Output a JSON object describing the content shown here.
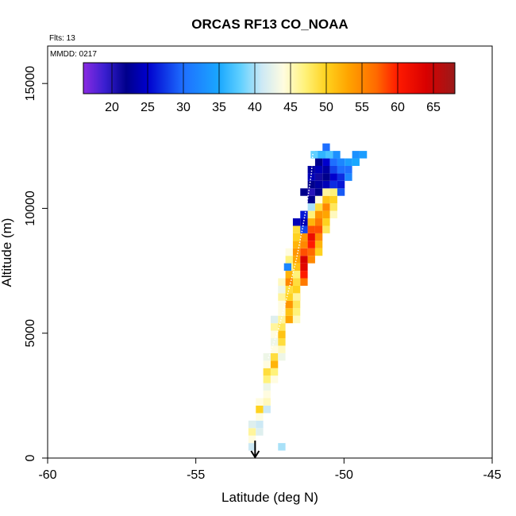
{
  "chart_data": {
    "type": "heatmap",
    "title": "ORCAS RF13 CO_NOAA",
    "flights_label": "Flts: 13",
    "date_label": "MMDD: 0217",
    "xlabel": "Latitude (deg N)",
    "ylabel": "Altitude (m)",
    "xlim": [
      -60,
      -45
    ],
    "ylim": [
      0,
      16500
    ],
    "xticks": [
      -60,
      -55,
      -50,
      -45
    ],
    "yticks": [
      0,
      5000,
      10000,
      15000
    ],
    "colorbar": {
      "range": [
        16,
        68
      ],
      "ticks": [
        20,
        25,
        30,
        35,
        40,
        45,
        50,
        55,
        60,
        65
      ],
      "stops": [
        {
          "v": 16,
          "c": "#8a2be2"
        },
        {
          "v": 19,
          "c": "#3a1fd0"
        },
        {
          "v": 22,
          "c": "#00008b"
        },
        {
          "v": 25,
          "c": "#0000cd"
        },
        {
          "v": 30,
          "c": "#1e6fff"
        },
        {
          "v": 35,
          "c": "#1aa8ff"
        },
        {
          "v": 38,
          "c": "#60d0ff"
        },
        {
          "v": 41,
          "c": "#cde9f5"
        },
        {
          "v": 44,
          "c": "#fffce0"
        },
        {
          "v": 47,
          "c": "#fff27a"
        },
        {
          "v": 50,
          "c": "#ffd21e"
        },
        {
          "v": 53,
          "c": "#ffa500"
        },
        {
          "v": 57,
          "c": "#ff6a00"
        },
        {
          "v": 60,
          "c": "#ff1a00"
        },
        {
          "v": 64,
          "c": "#d80000"
        },
        {
          "v": 68,
          "c": "#9a1a1a"
        }
      ]
    },
    "arrow_latitude": -53.0,
    "bin": {
      "dlat": 0.25,
      "dalt": 300
    },
    "columns": [
      {
        "lat": -53.1,
        "alt0": 300,
        "values": [
          41,
          44,
          46,
          42
        ]
      },
      {
        "lat": -52.85,
        "alt0": 900,
        "values": [
          42,
          41,
          44,
          50,
          44
        ]
      },
      {
        "lat": -52.6,
        "alt0": 1800,
        "values": [
          41,
          45,
          44,
          43,
          47,
          49,
          44,
          43
        ]
      },
      {
        "lat": -52.35,
        "alt0": 3000,
        "values": [
          44,
          47,
          52,
          49,
          44,
          43,
          44,
          46,
          42
        ]
      },
      {
        "lat": -52.1,
        "alt0": 3900,
        "values": [
          43,
          45,
          49,
          51,
          48,
          46,
          44,
          44,
          46,
          43,
          45
        ]
      },
      {
        "lat": -51.85,
        "alt0": 5400,
        "values": [
          53,
          51,
          54,
          50,
          49,
          55,
          52,
          46,
          47,
          44
        ]
      },
      {
        "lat": -51.6,
        "alt0": 5400,
        "values": [
          45,
          47,
          48,
          52,
          50,
          49,
          47,
          51,
          53,
          54,
          52,
          50,
          49
        ]
      },
      {
        "lat": -51.35,
        "alt0": 6900,
        "values": [
          56,
          60,
          63,
          64,
          58,
          55,
          54,
          28,
          24
        ]
      },
      {
        "lat": -51.1,
        "alt0": 7800,
        "values": [
          55,
          57,
          60,
          62,
          58,
          52,
          47,
          40,
          22,
          20,
          22,
          24,
          23
        ]
      },
      {
        "lat": -50.85,
        "alt0": 8100,
        "values": [
          50,
          52,
          55,
          58,
          56,
          54,
          49,
          44,
          22,
          23,
          21,
          24,
          22,
          30
        ]
      },
      {
        "lat": -50.6,
        "alt0": 9000,
        "values": [
          48,
          50,
          53,
          55,
          51,
          46,
          24,
          22,
          23,
          25,
          26,
          30
        ]
      },
      {
        "lat": -50.35,
        "alt0": 9600,
        "values": [
          45,
          48,
          50,
          47,
          27,
          25,
          28,
          30
        ]
      },
      {
        "lat": -50.1,
        "alt0": 10500,
        "values": [
          29,
          26,
          27,
          30,
          32
        ]
      },
      {
        "lat": -49.85,
        "alt0": 11100,
        "values": [
          32,
          30,
          34
        ]
      },
      {
        "lat": -49.6,
        "alt0": 11700,
        "values": [
          35,
          33
        ]
      }
    ],
    "extra_cells": [
      {
        "lat": -52.1,
        "alt": 300,
        "v": 40
      },
      {
        "lat": -51.9,
        "alt": 7500,
        "v": 32
      },
      {
        "lat": -51.6,
        "alt": 9300,
        "v": 24
      },
      {
        "lat": -51.35,
        "alt": 9600,
        "v": 26
      },
      {
        "lat": -51.35,
        "alt": 10500,
        "v": 22
      },
      {
        "lat": -51.6,
        "alt": 6300,
        "v": 46
      },
      {
        "lat": -49.35,
        "alt": 12000,
        "v": 34
      },
      {
        "lat": -51.0,
        "alt": 12000,
        "v": 38
      },
      {
        "lat": -50.75,
        "alt": 12000,
        "v": 36
      },
      {
        "lat": -50.5,
        "alt": 12000,
        "v": 37
      },
      {
        "lat": -50.25,
        "alt": 12000,
        "v": 33
      }
    ],
    "track": {
      "lat": [
        -52.55,
        -52.2,
        -51.85,
        -51.6,
        -51.4,
        -51.25,
        -51.1,
        -51.05
      ],
      "alt": [
        4000,
        5200,
        6800,
        8000,
        9200,
        10200,
        11400,
        12200
      ]
    }
  }
}
